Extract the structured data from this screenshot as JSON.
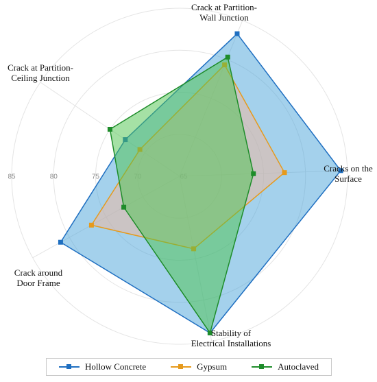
{
  "chart_data": {
    "type": "radar",
    "axes": [
      "Crack at Partition-\nWall Junction",
      "Cracks on the\nSurface",
      "Stability of\nElectrical Installations",
      "Crack around\nDoor Frame",
      "Crack at Partition-\nCeiling Junction"
    ],
    "r_ticks": [
      65,
      70,
      75,
      80,
      85
    ],
    "r_range": [
      65,
      85
    ],
    "grid": true,
    "legend_position": "bottom",
    "series": [
      {
        "name": "Hollow Concrete",
        "color": "#1f6fc1",
        "fill": "#4aa3d9",
        "values": [
          83.3,
          84.2,
          84.0,
          81.2,
          72.8
        ]
      },
      {
        "name": "Gypsum",
        "color": "#e69a1c",
        "fill": "#f1b89c",
        "values": [
          79.3,
          77.5,
          73.8,
          77.0,
          70.7
        ]
      },
      {
        "name": "Autoclaved",
        "color": "#1e8c2a",
        "fill": "#4cc34c",
        "values": [
          80.3,
          73.8,
          84.0,
          72.6,
          75.0
        ]
      }
    ]
  }
}
